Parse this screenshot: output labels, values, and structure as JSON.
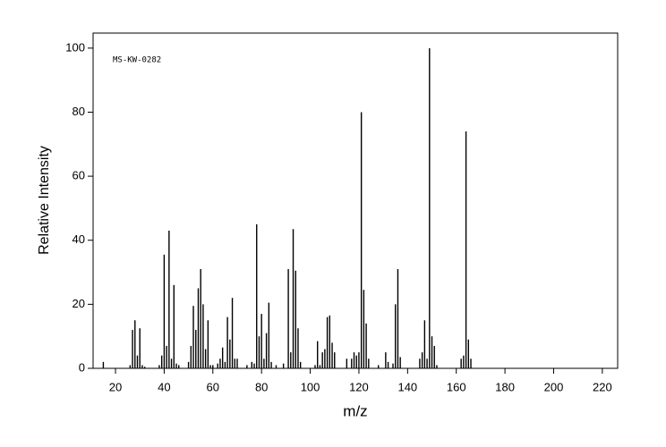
{
  "chart_data": {
    "type": "bar",
    "annotation": "MS-KW-0282",
    "xlabel": "m/z",
    "ylabel": "Relative Intensity",
    "x": [
      15,
      26,
      27,
      28,
      29,
      30,
      31,
      32,
      38,
      39,
      40,
      41,
      42,
      43,
      44,
      45,
      46,
      50,
      51,
      52,
      53,
      54,
      55,
      56,
      57,
      58,
      59,
      60,
      62,
      63,
      64,
      65,
      66,
      67,
      68,
      69,
      70,
      74,
      76,
      77,
      78,
      79,
      80,
      81,
      82,
      83,
      84,
      86,
      89,
      91,
      92,
      93,
      94,
      95,
      96,
      102,
      103,
      104,
      105,
      106,
      107,
      108,
      109,
      110,
      115,
      117,
      118,
      119,
      120,
      121,
      122,
      123,
      124,
      128,
      131,
      132,
      134,
      135,
      136,
      137,
      145,
      146,
      147,
      148,
      149,
      150,
      151,
      152,
      162,
      163,
      164,
      165,
      166
    ],
    "values": [
      2,
      1,
      12,
      15,
      4,
      12.5,
      1,
      0.5,
      1,
      4,
      35.5,
      7,
      43,
      3,
      26,
      1.5,
      1,
      2,
      7,
      19.5,
      12,
      25,
      31,
      20,
      6,
      15,
      1,
      1,
      1.5,
      3,
      6.5,
      2,
      16,
      9,
      22,
      3,
      3,
      1,
      2,
      1.5,
      45,
      10,
      17,
      3,
      11,
      20.5,
      2,
      1,
      1.5,
      31,
      5,
      43.5,
      30.5,
      12.5,
      2,
      1,
      8.5,
      1,
      5,
      6,
      16,
      16.5,
      8,
      5,
      3,
      3,
      5,
      4,
      5,
      80,
      24.5,
      14,
      3,
      1,
      5,
      2,
      1.5,
      20,
      31,
      3.5,
      3,
      5,
      15,
      3,
      100,
      10,
      7,
      1,
      3,
      4,
      74,
      9,
      3
    ],
    "color": "#000000",
    "xlim": [
      10.8,
      226.3
    ],
    "ylim": [
      0,
      104.7
    ],
    "xticks": [
      20,
      40,
      60,
      80,
      100,
      120,
      140,
      160,
      180,
      200,
      220
    ],
    "yticks": [
      0,
      20,
      40,
      60,
      80,
      100
    ]
  }
}
